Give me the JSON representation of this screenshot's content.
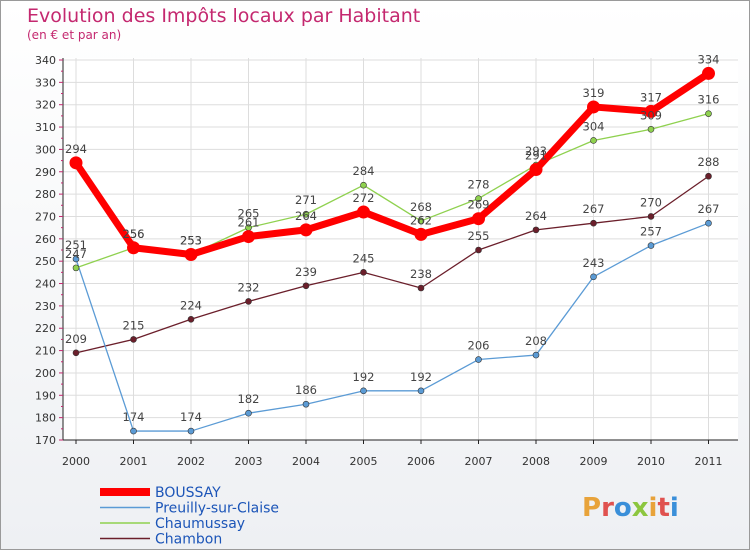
{
  "chart_data": {
    "type": "line",
    "title": "Evolution des Impôts locaux par Habitant",
    "subtitle": "(en € et par an)",
    "categories": [
      "2000",
      "2001",
      "2002",
      "2003",
      "2004",
      "2005",
      "2006",
      "2007",
      "2008",
      "2009",
      "2010",
      "2011"
    ],
    "ylim": [
      170,
      340
    ],
    "yticks": [
      170,
      180,
      190,
      200,
      210,
      220,
      230,
      240,
      250,
      260,
      270,
      280,
      290,
      300,
      310,
      320,
      330,
      340
    ],
    "grid": true,
    "legend_position": "bottom-left",
    "series": [
      {
        "name": "Chambon",
        "color": "#6b1f2b",
        "values": [
          209,
          215,
          224,
          232,
          239,
          245,
          238,
          255,
          264,
          267,
          270,
          288
        ]
      },
      {
        "name": "Preuilly-sur-Claise",
        "color": "#5b9bd5",
        "values": [
          251,
          174,
          174,
          182,
          186,
          192,
          192,
          206,
          208,
          243,
          257,
          267
        ]
      },
      {
        "name": "Chaumussay",
        "color": "#8fd14f",
        "values": [
          247,
          256,
          253,
          265,
          271,
          284,
          268,
          278,
          293,
          304,
          309,
          316
        ]
      },
      {
        "name": "BOUSSAY",
        "color": "#ff0000",
        "values": [
          294,
          256,
          253,
          261,
          264,
          272,
          262,
          269,
          291,
          319,
          317,
          334
        ]
      }
    ],
    "labels": [
      {
        "series": "BOUSSAY",
        "texts": [
          "294",
          "256",
          "253",
          "261",
          "264",
          "272",
          "262",
          "269",
          "291",
          "319",
          "317",
          "334"
        ]
      },
      {
        "series": "Chaumussay",
        "texts": [
          "247",
          "256",
          "253",
          "265",
          "271",
          "284",
          "268",
          "278",
          "293",
          "304",
          "309",
          "316"
        ]
      },
      {
        "series": "Preuilly-sur-Claise",
        "texts": [
          "251",
          "174",
          "174",
          "182",
          "186",
          "192",
          "192",
          "206",
          "208",
          "243",
          "257",
          "267"
        ]
      },
      {
        "series": "Chambon",
        "texts": [
          "209",
          "215",
          "224",
          "232",
          "239",
          "245",
          "238",
          "255",
          "264",
          "267",
          "270",
          "288"
        ]
      }
    ],
    "legend": [
      "BOUSSAY",
      "Preuilly-sur-Claise",
      "Chaumussay",
      "Chambon"
    ]
  },
  "logo": {
    "text": "Proxiti",
    "letters": [
      "P",
      "r",
      "o",
      "x",
      "i",
      "t",
      "i"
    ],
    "colors": [
      "#e8a33a",
      "#e0524f",
      "#3a8fd9",
      "#8cc63f",
      "#e8a33a",
      "#e0524f",
      "#3a8fd9"
    ]
  }
}
